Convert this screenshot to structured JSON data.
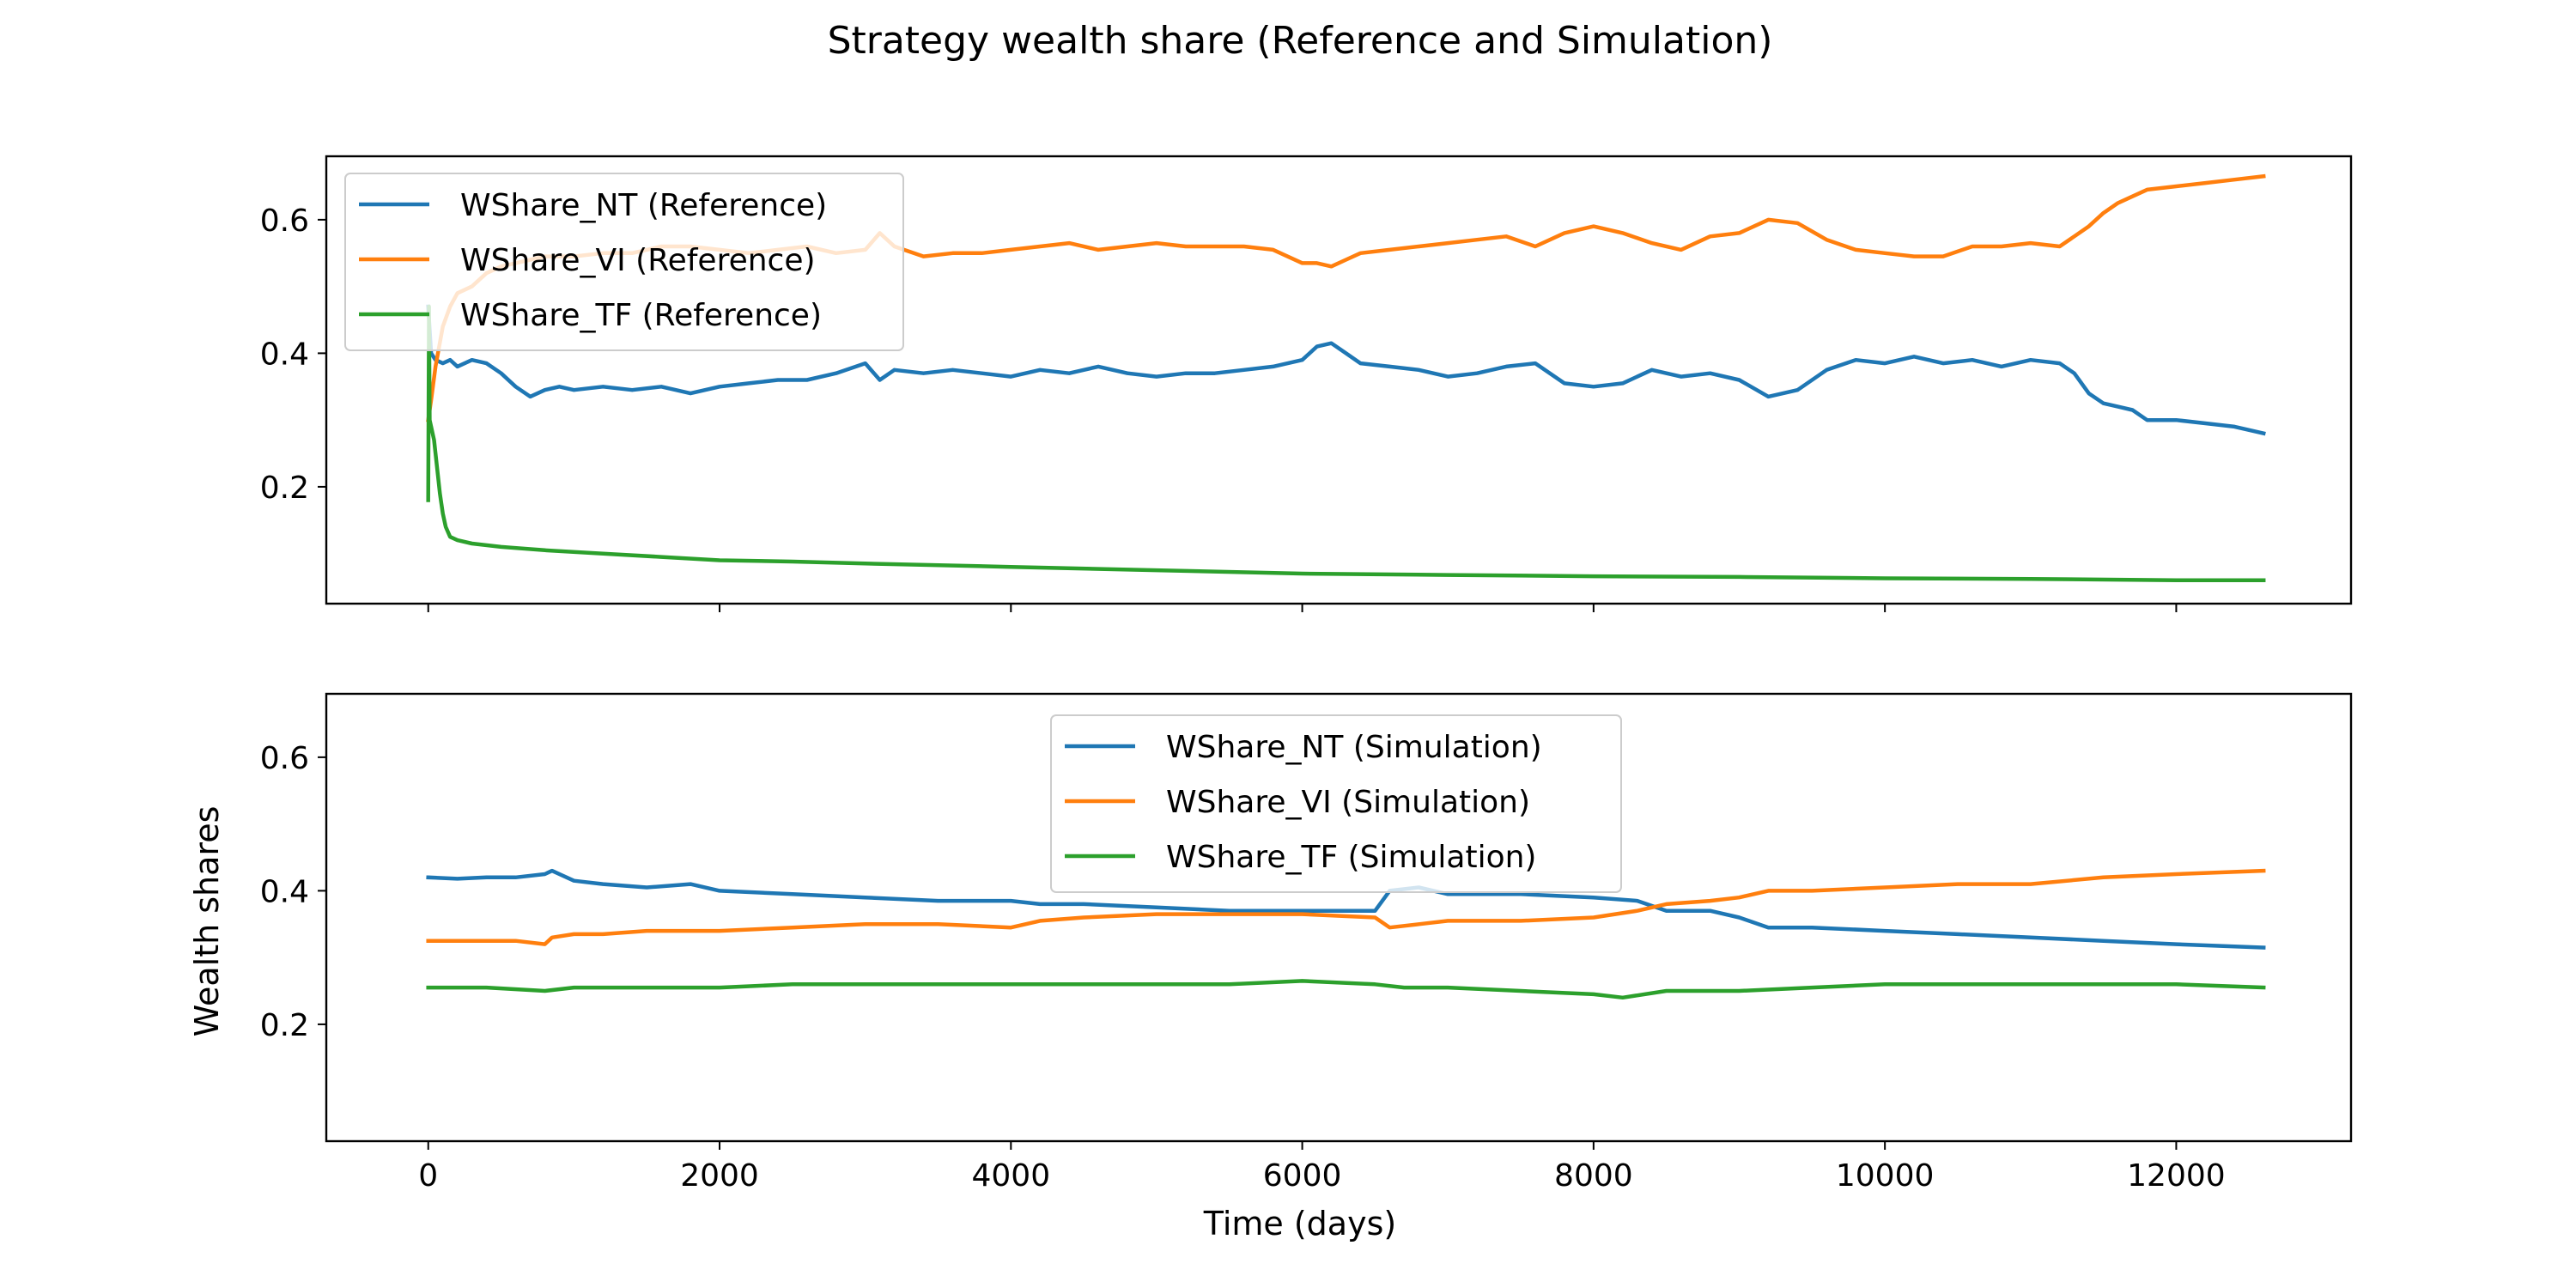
{
  "chart_data": {
    "type": "line",
    "title": "Strategy wealth share (Reference and Simulation)",
    "xlabel": "Time (days)",
    "ylabel": "Wealth shares",
    "xlim": [
      -700,
      13200
    ],
    "ylim": [
      0.025,
      0.695
    ],
    "xticks": [
      0,
      2000,
      4000,
      6000,
      8000,
      10000,
      12000
    ],
    "yticks": [
      0.2,
      0.4,
      0.6
    ],
    "sharex": true,
    "sharey": true,
    "grid": false,
    "colors": {
      "NT": "#1f77b4",
      "VI": "#ff7f0e",
      "TF": "#2ca02c"
    },
    "panels": [
      {
        "name": "reference",
        "legend_position": "upper-left",
        "series": [
          {
            "name": "WShare_NT (Reference)",
            "color": "#1f77b4",
            "x": [
              0,
              20,
              50,
              100,
              150,
              200,
              300,
              400,
              500,
              600,
              700,
              800,
              900,
              1000,
              1200,
              1400,
              1600,
              1800,
              2000,
              2200,
              2400,
              2600,
              2800,
              3000,
              3100,
              3200,
              3400,
              3600,
              3800,
              4000,
              4200,
              4400,
              4600,
              4800,
              5000,
              5200,
              5400,
              5600,
              5800,
              6000,
              6100,
              6200,
              6300,
              6400,
              6600,
              6800,
              7000,
              7200,
              7400,
              7600,
              7800,
              8000,
              8200,
              8400,
              8600,
              8800,
              9000,
              9200,
              9400,
              9600,
              9800,
              10000,
              10200,
              10400,
              10600,
              10800,
              11000,
              11200,
              11300,
              11400,
              11500,
              11600,
              11700,
              11800,
              12000,
              12200,
              12400,
              12600
            ],
            "y": [
              0.47,
              0.4,
              0.39,
              0.385,
              0.39,
              0.38,
              0.39,
              0.385,
              0.37,
              0.35,
              0.335,
              0.345,
              0.35,
              0.345,
              0.35,
              0.345,
              0.35,
              0.34,
              0.35,
              0.355,
              0.36,
              0.36,
              0.37,
              0.385,
              0.36,
              0.375,
              0.37,
              0.375,
              0.37,
              0.365,
              0.375,
              0.37,
              0.38,
              0.37,
              0.365,
              0.37,
              0.37,
              0.375,
              0.38,
              0.39,
              0.41,
              0.415,
              0.4,
              0.385,
              0.38,
              0.375,
              0.365,
              0.37,
              0.38,
              0.385,
              0.355,
              0.35,
              0.355,
              0.375,
              0.365,
              0.37,
              0.36,
              0.335,
              0.345,
              0.375,
              0.39,
              0.385,
              0.395,
              0.385,
              0.39,
              0.38,
              0.39,
              0.385,
              0.37,
              0.34,
              0.325,
              0.32,
              0.315,
              0.3,
              0.3,
              0.295,
              0.29,
              0.28
            ]
          },
          {
            "name": "WShare_VI (Reference)",
            "color": "#ff7f0e",
            "x": [
              0,
              20,
              50,
              100,
              150,
              200,
              300,
              400,
              500,
              600,
              700,
              800,
              1000,
              1200,
              1400,
              1600,
              1800,
              2000,
              2200,
              2400,
              2600,
              2800,
              3000,
              3100,
              3200,
              3400,
              3600,
              3800,
              4000,
              4200,
              4400,
              4600,
              4800,
              5000,
              5200,
              5400,
              5600,
              5800,
              6000,
              6100,
              6200,
              6300,
              6400,
              6600,
              6800,
              7000,
              7200,
              7400,
              7600,
              7800,
              8000,
              8200,
              8400,
              8600,
              8800,
              9000,
              9200,
              9400,
              9600,
              9800,
              10000,
              10200,
              10400,
              10600,
              10800,
              11000,
              11200,
              11300,
              11400,
              11500,
              11600,
              11700,
              11800,
              12000,
              12200,
              12400,
              12600
            ],
            "y": [
              0.3,
              0.33,
              0.38,
              0.44,
              0.47,
              0.49,
              0.5,
              0.52,
              0.53,
              0.535,
              0.54,
              0.545,
              0.545,
              0.55,
              0.55,
              0.56,
              0.56,
              0.555,
              0.55,
              0.555,
              0.56,
              0.55,
              0.555,
              0.58,
              0.56,
              0.545,
              0.55,
              0.55,
              0.555,
              0.56,
              0.565,
              0.555,
              0.56,
              0.565,
              0.56,
              0.56,
              0.56,
              0.555,
              0.535,
              0.535,
              0.53,
              0.54,
              0.55,
              0.555,
              0.56,
              0.565,
              0.57,
              0.575,
              0.56,
              0.58,
              0.59,
              0.58,
              0.565,
              0.555,
              0.575,
              0.58,
              0.6,
              0.595,
              0.57,
              0.555,
              0.55,
              0.545,
              0.545,
              0.56,
              0.56,
              0.565,
              0.56,
              0.575,
              0.59,
              0.61,
              0.625,
              0.635,
              0.645,
              0.65,
              0.655,
              0.66,
              0.665
            ]
          },
          {
            "name": "WShare_TF (Reference)",
            "color": "#2ca02c",
            "x": [
              0,
              5,
              10,
              20,
              40,
              60,
              80,
              100,
              120,
              150,
              200,
              300,
              500,
              800,
              1200,
              1600,
              2000,
              2500,
              3000,
              4000,
              5000,
              6000,
              7000,
              8000,
              9000,
              10000,
              11000,
              12000,
              12600
            ],
            "y": [
              0.18,
              0.47,
              0.3,
              0.29,
              0.27,
              0.23,
              0.19,
              0.16,
              0.14,
              0.125,
              0.12,
              0.115,
              0.11,
              0.105,
              0.1,
              0.095,
              0.09,
              0.088,
              0.085,
              0.08,
              0.075,
              0.07,
              0.068,
              0.066,
              0.065,
              0.063,
              0.062,
              0.06,
              0.06
            ]
          }
        ]
      },
      {
        "name": "simulation",
        "legend_position": "upper-center",
        "series": [
          {
            "name": "WShare_NT (Simulation)",
            "color": "#1f77b4",
            "x": [
              0,
              200,
              400,
              600,
              800,
              850,
              1000,
              1200,
              1500,
              1800,
              2000,
              2500,
              3000,
              3500,
              4000,
              4200,
              4500,
              5000,
              5500,
              6000,
              6500,
              6600,
              6800,
              7000,
              7500,
              8000,
              8300,
              8500,
              8800,
              9000,
              9200,
              9500,
              10000,
              10500,
              11000,
              11500,
              12000,
              12600
            ],
            "y": [
              0.42,
              0.418,
              0.42,
              0.42,
              0.425,
              0.43,
              0.415,
              0.41,
              0.405,
              0.41,
              0.4,
              0.395,
              0.39,
              0.385,
              0.385,
              0.38,
              0.38,
              0.375,
              0.37,
              0.37,
              0.37,
              0.4,
              0.405,
              0.395,
              0.395,
              0.39,
              0.385,
              0.37,
              0.37,
              0.36,
              0.345,
              0.345,
              0.34,
              0.335,
              0.33,
              0.325,
              0.32,
              0.315
            ]
          },
          {
            "name": "WShare_VI (Simulation)",
            "color": "#ff7f0e",
            "x": [
              0,
              200,
              400,
              600,
              800,
              850,
              1000,
              1200,
              1500,
              2000,
              2500,
              3000,
              3500,
              4000,
              4200,
              4500,
              5000,
              5500,
              6000,
              6500,
              6600,
              6800,
              7000,
              7500,
              8000,
              8300,
              8500,
              8800,
              9000,
              9200,
              9500,
              10000,
              10500,
              11000,
              11500,
              12000,
              12600
            ],
            "y": [
              0.325,
              0.325,
              0.325,
              0.325,
              0.32,
              0.33,
              0.335,
              0.335,
              0.34,
              0.34,
              0.345,
              0.35,
              0.35,
              0.345,
              0.355,
              0.36,
              0.365,
              0.365,
              0.365,
              0.36,
              0.345,
              0.35,
              0.355,
              0.355,
              0.36,
              0.37,
              0.38,
              0.385,
              0.39,
              0.4,
              0.4,
              0.405,
              0.41,
              0.41,
              0.42,
              0.425,
              0.43
            ]
          },
          {
            "name": "WShare_TF (Simulation)",
            "color": "#2ca02c",
            "x": [
              0,
              400,
              800,
              1000,
              1500,
              2000,
              2500,
              3000,
              3500,
              4000,
              4500,
              5000,
              5500,
              6000,
              6500,
              6700,
              7000,
              7500,
              8000,
              8200,
              8500,
              9000,
              9500,
              10000,
              10500,
              11000,
              11500,
              12000,
              12600
            ],
            "y": [
              0.255,
              0.255,
              0.25,
              0.255,
              0.255,
              0.255,
              0.26,
              0.26,
              0.26,
              0.26,
              0.26,
              0.26,
              0.26,
              0.265,
              0.26,
              0.255,
              0.255,
              0.25,
              0.245,
              0.24,
              0.25,
              0.25,
              0.255,
              0.26,
              0.26,
              0.26,
              0.26,
              0.26,
              0.255
            ]
          }
        ]
      }
    ]
  }
}
